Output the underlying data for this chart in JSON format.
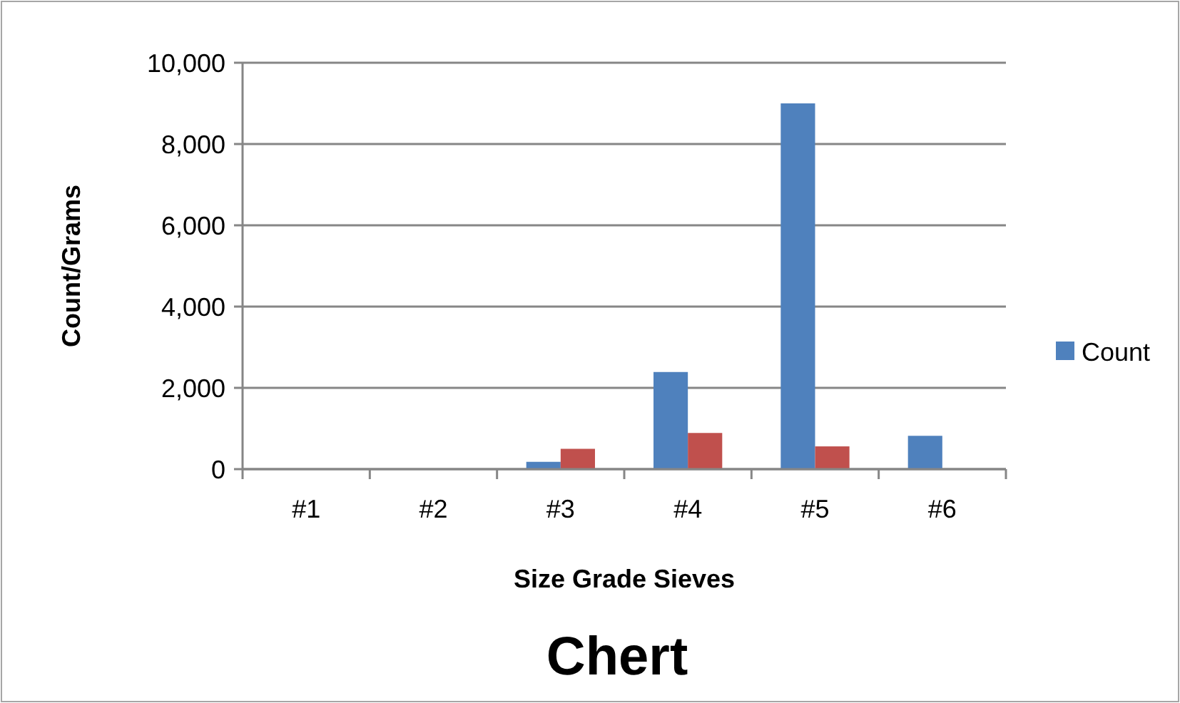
{
  "chart_data": {
    "type": "bar",
    "title": "Chert",
    "xlabel": "Size Grade Sieves",
    "ylabel": "Count/Grams",
    "categories": [
      "#1",
      "#2",
      "#3",
      "#4",
      "#5",
      "#6"
    ],
    "series": [
      {
        "name": "Count",
        "color": "#4f81bd",
        "values": [
          0,
          0,
          180,
          2390,
          9000,
          820
        ]
      },
      {
        "color": "#c0504d",
        "values": [
          0,
          0,
          500,
          890,
          560,
          0
        ]
      }
    ],
    "ylim": [
      0,
      10000
    ],
    "yticks": [
      {
        "value": 0,
        "label": "0"
      },
      {
        "value": 2000,
        "label": "2,000"
      },
      {
        "value": 4000,
        "label": "4,000"
      },
      {
        "value": 6000,
        "label": "6,000"
      },
      {
        "value": 8000,
        "label": "8,000"
      },
      {
        "value": 10000,
        "label": "10,000"
      }
    ],
    "grid": "y",
    "legend": "right"
  }
}
